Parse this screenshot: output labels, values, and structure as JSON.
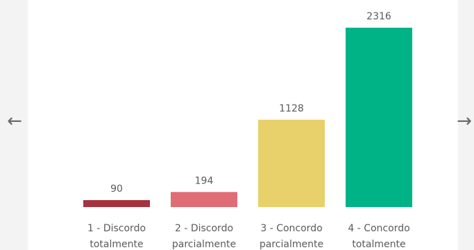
{
  "navigation": {
    "prev_icon": "arrow-left-icon",
    "next_icon": "arrow-right-icon",
    "prev_glyph": "←",
    "next_glyph": "→"
  },
  "chart_data": {
    "type": "bar",
    "categories": [
      [
        "1 - Discordo",
        "totalmente"
      ],
      [
        "2 - Discordo",
        "parcialmente"
      ],
      [
        "3 - Concordo",
        "parcialmente"
      ],
      [
        "4 - Concordo",
        "totalmente"
      ]
    ],
    "values": [
      90,
      194,
      1128,
      2316
    ],
    "data_labels": [
      "90",
      "194",
      "1128",
      "2316"
    ],
    "colors": [
      "#a4333f",
      "#e06c75",
      "#e8d06a",
      "#00b386"
    ],
    "ylim": [
      0,
      2316
    ],
    "grid": false,
    "legend": "none"
  }
}
